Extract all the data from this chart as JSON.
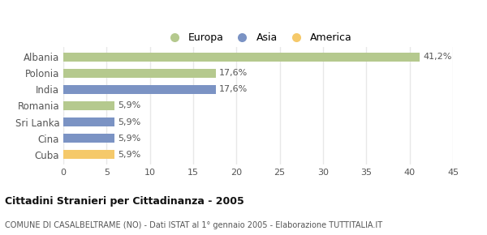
{
  "categories": [
    "Albania",
    "Polonia",
    "India",
    "Romania",
    "Sri Lanka",
    "Cina",
    "Cuba"
  ],
  "values": [
    41.2,
    17.6,
    17.6,
    5.9,
    5.9,
    5.9,
    5.9
  ],
  "labels": [
    "41,2%",
    "17,6%",
    "17,6%",
    "5,9%",
    "5,9%",
    "5,9%",
    "5,9%"
  ],
  "colors": [
    "#b5c98e",
    "#b5c98e",
    "#7b93c4",
    "#b5c98e",
    "#7b93c4",
    "#7b93c4",
    "#f5c96a"
  ],
  "legend_labels": [
    "Europa",
    "Asia",
    "America"
  ],
  "legend_colors": [
    "#b5c98e",
    "#7b93c4",
    "#f5c96a"
  ],
  "title": "Cittadini Stranieri per Cittadinanza - 2005",
  "subtitle": "COMUNE DI CASALBELTRAME (NO) - Dati ISTAT al 1° gennaio 2005 - Elaborazione TUTTITALIA.IT",
  "xlim": [
    0,
    45
  ],
  "xticks": [
    0,
    5,
    10,
    15,
    20,
    25,
    30,
    35,
    40,
    45
  ],
  "background_color": "#ffffff",
  "plot_bg_color": "#ffffff",
  "grid_color": "#e8e8e8"
}
